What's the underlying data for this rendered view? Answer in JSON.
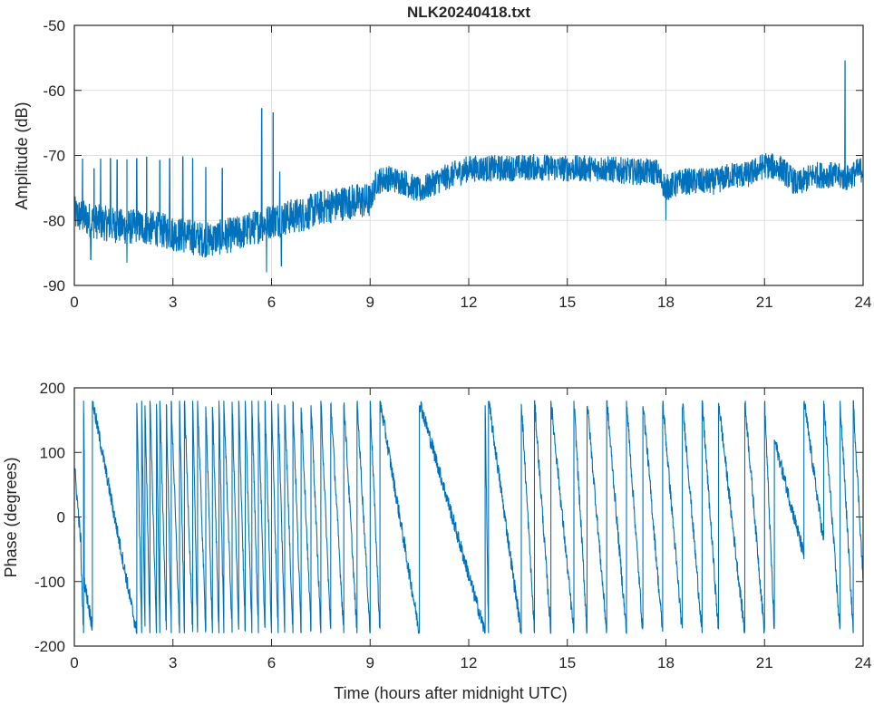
{
  "chart_data": [
    {
      "type": "line",
      "title": "NLK20240418.txt",
      "xlabel": "",
      "ylabel": "Amplitude (dB)",
      "xlim": [
        0,
        24
      ],
      "ylim": [
        -90,
        -50
      ],
      "xticks": [
        0,
        3,
        6,
        9,
        12,
        15,
        18,
        21,
        24
      ],
      "yticks": [
        -90,
        -80,
        -70,
        -60,
        -50
      ],
      "grid": true,
      "color": "#0072BD",
      "noise_band_db": 2.3,
      "baseline": [
        [
          0,
          -79
        ],
        [
          0.5,
          -80
        ],
        [
          1,
          -80.5
        ],
        [
          1.5,
          -81
        ],
        [
          2,
          -81
        ],
        [
          2.5,
          -81.3
        ],
        [
          3,
          -82
        ],
        [
          3.5,
          -82.5
        ],
        [
          4,
          -83
        ],
        [
          4.5,
          -82.5
        ],
        [
          5,
          -82
        ],
        [
          5.5,
          -81
        ],
        [
          6,
          -80
        ],
        [
          6.5,
          -79.5
        ],
        [
          7,
          -79
        ],
        [
          7.5,
          -78
        ],
        [
          8,
          -77.5
        ],
        [
          8.5,
          -77
        ],
        [
          9,
          -77
        ],
        [
          9.2,
          -74
        ],
        [
          9.5,
          -73.5
        ],
        [
          10,
          -74
        ],
        [
          10.5,
          -75.5
        ],
        [
          11,
          -74
        ],
        [
          11.5,
          -73
        ],
        [
          12,
          -72
        ],
        [
          12.5,
          -72
        ],
        [
          13,
          -72
        ],
        [
          14,
          -71.8
        ],
        [
          15,
          -72
        ],
        [
          16,
          -72
        ],
        [
          17,
          -72.5
        ],
        [
          17.7,
          -72.5
        ],
        [
          18,
          -75
        ],
        [
          18.5,
          -74
        ],
        [
          19,
          -74
        ],
        [
          19.5,
          -74
        ],
        [
          20,
          -73
        ],
        [
          20.5,
          -73
        ],
        [
          21,
          -71.5
        ],
        [
          21.5,
          -72
        ],
        [
          22,
          -74.5
        ],
        [
          22.5,
          -73
        ],
        [
          23,
          -73
        ],
        [
          23.5,
          -73.5
        ],
        [
          24,
          -72
        ]
      ],
      "spikes": [
        [
          0.25,
          -70.5
        ],
        [
          0.6,
          -72
        ],
        [
          0.8,
          -70.5
        ],
        [
          1.1,
          -70.5
        ],
        [
          1.3,
          -70.7
        ],
        [
          1.6,
          -70.6
        ],
        [
          1.9,
          -70.5
        ],
        [
          2.2,
          -70.2
        ],
        [
          2.6,
          -70.7
        ],
        [
          2.9,
          -70.5
        ],
        [
          3.3,
          -70.2
        ],
        [
          3.6,
          -70.4
        ],
        [
          4.0,
          -71.8
        ],
        [
          4.5,
          -72
        ],
        [
          5.7,
          -62.8
        ],
        [
          6.05,
          -63.4
        ],
        [
          6.25,
          -72.5
        ],
        [
          23.45,
          -55.4
        ]
      ],
      "dips": [
        [
          5.85,
          -88
        ],
        [
          6.3,
          -87
        ],
        [
          18.0,
          -80
        ],
        [
          0.5,
          -86
        ],
        [
          1.6,
          -86.5
        ]
      ]
    },
    {
      "type": "line",
      "title": "",
      "xlabel": "Time (hours after midnight UTC)",
      "ylabel": "Phase (degrees)",
      "xlim": [
        0,
        24
      ],
      "ylim": [
        -200,
        200
      ],
      "xticks": [
        0,
        3,
        6,
        9,
        12,
        15,
        18,
        21,
        24
      ],
      "yticks": [
        -200,
        -100,
        0,
        100,
        200
      ],
      "grid": false,
      "color": "#0072BD",
      "noise_deg": 12,
      "sawtooth_segments": [
        [
          0,
          0.2,
          80,
          -40
        ],
        [
          0.2,
          0.28,
          -60,
          -180
        ],
        [
          0.28,
          0.3,
          180,
          100
        ],
        [
          0.3,
          0.55,
          -100,
          -170
        ],
        [
          0.55,
          1.9,
          180,
          -180
        ],
        [
          1.9,
          2.05,
          180,
          -180
        ],
        [
          2.05,
          2.15,
          180,
          -180
        ],
        [
          2.15,
          2.3,
          180,
          -180
        ],
        [
          2.3,
          2.5,
          180,
          -180
        ],
        [
          2.5,
          2.6,
          180,
          -180
        ],
        [
          2.6,
          2.8,
          180,
          -180
        ],
        [
          2.8,
          2.95,
          180,
          -180
        ],
        [
          2.95,
          3.2,
          180,
          -180
        ],
        [
          3.2,
          3.35,
          180,
          -180
        ],
        [
          3.35,
          3.6,
          180,
          -180
        ],
        [
          3.6,
          3.75,
          180,
          -180
        ],
        [
          3.75,
          4.0,
          180,
          -180
        ],
        [
          4.0,
          4.2,
          180,
          -180
        ],
        [
          4.2,
          4.4,
          180,
          -180
        ],
        [
          4.4,
          4.55,
          180,
          -180
        ],
        [
          4.55,
          4.8,
          180,
          -180
        ],
        [
          4.8,
          5.0,
          180,
          -180
        ],
        [
          5.0,
          5.2,
          180,
          -180
        ],
        [
          5.2,
          5.4,
          180,
          -180
        ],
        [
          5.4,
          5.6,
          180,
          -180
        ],
        [
          5.6,
          5.8,
          180,
          -180
        ],
        [
          5.8,
          6.0,
          180,
          -180
        ],
        [
          6.0,
          6.2,
          180,
          -180
        ],
        [
          6.2,
          6.4,
          180,
          -180
        ],
        [
          6.4,
          6.65,
          180,
          -180
        ],
        [
          6.65,
          6.9,
          180,
          -180
        ],
        [
          6.9,
          7.2,
          180,
          -180
        ],
        [
          7.2,
          7.5,
          180,
          -180
        ],
        [
          7.5,
          7.8,
          180,
          -180
        ],
        [
          7.8,
          8.2,
          180,
          -180
        ],
        [
          8.2,
          8.6,
          180,
          -180
        ],
        [
          8.6,
          9.0,
          180,
          -180
        ],
        [
          9.0,
          9.3,
          180,
          -180
        ],
        [
          9.3,
          10.5,
          180,
          -180
        ],
        [
          10.5,
          12.5,
          180,
          -180
        ],
        [
          12.5,
          12.6,
          180,
          -180
        ],
        [
          12.6,
          13.6,
          180,
          -180
        ],
        [
          13.6,
          14.0,
          180,
          -180
        ],
        [
          14.0,
          14.5,
          180,
          -180
        ],
        [
          14.5,
          15.2,
          180,
          -180
        ],
        [
          15.2,
          15.6,
          180,
          -180
        ],
        [
          15.6,
          16.2,
          180,
          -180
        ],
        [
          16.2,
          16.8,
          180,
          -180
        ],
        [
          16.8,
          17.3,
          180,
          -180
        ],
        [
          17.3,
          17.9,
          180,
          -180
        ],
        [
          17.9,
          18.5,
          180,
          -180
        ],
        [
          18.5,
          19.1,
          180,
          -180
        ],
        [
          19.1,
          19.6,
          180,
          -180
        ],
        [
          19.6,
          20.4,
          180,
          -180
        ],
        [
          20.4,
          21.0,
          180,
          -180
        ],
        [
          21.0,
          21.3,
          180,
          -180
        ],
        [
          21.3,
          22.2,
          120,
          -60
        ],
        [
          22.2,
          22.8,
          180,
          -40
        ],
        [
          22.8,
          23.3,
          180,
          -180
        ],
        [
          23.3,
          23.7,
          180,
          -180
        ],
        [
          23.7,
          24,
          180,
          -100
        ]
      ]
    }
  ]
}
